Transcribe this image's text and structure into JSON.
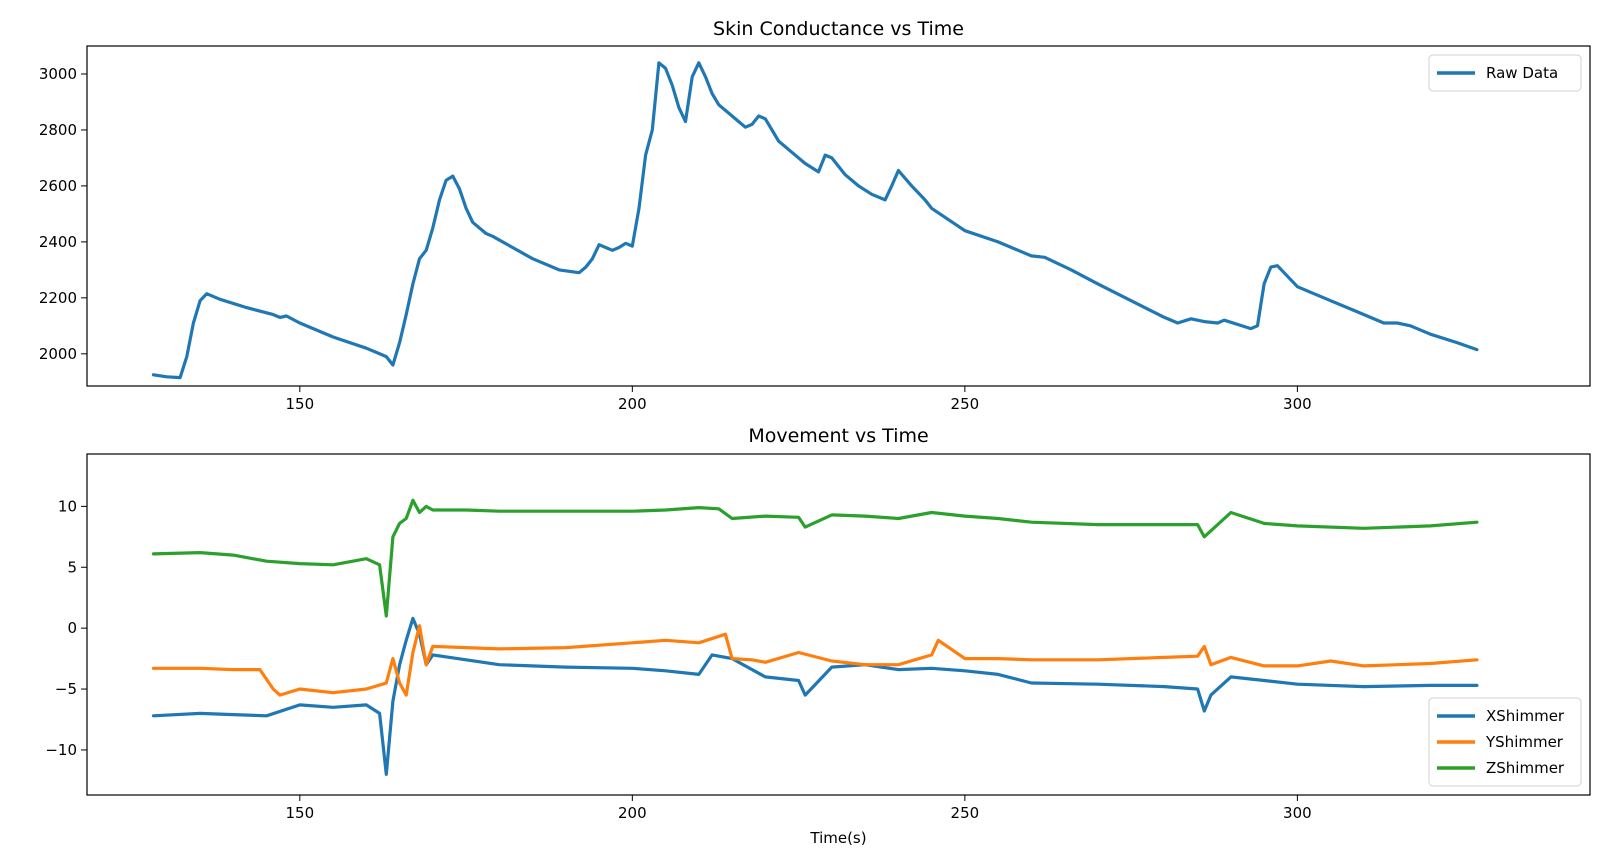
{
  "chart_data": [
    {
      "type": "line",
      "title": "Skin Conductance vs Time",
      "xlabel": "",
      "ylabel": "",
      "xlim": [
        118,
        344
      ],
      "ylim": [
        1885,
        3100
      ],
      "xticks": [
        150,
        200,
        250,
        300
      ],
      "yticks": [
        2000,
        2200,
        2400,
        2600,
        2800,
        3000
      ],
      "grid": false,
      "legend_position": "top-right",
      "series": [
        {
          "name": "Raw Data",
          "color": "#1f77b4",
          "x": [
            128,
            130,
            132,
            133,
            134,
            135,
            136,
            138,
            142,
            146,
            147,
            148,
            150,
            155,
            160,
            163,
            164,
            165,
            166,
            167,
            168,
            169,
            170,
            171,
            172,
            173,
            174,
            175,
            176,
            178,
            179,
            182,
            185,
            189,
            192,
            193,
            194,
            195,
            196,
            197,
            198,
            199,
            200,
            201,
            202,
            203,
            204,
            205,
            206,
            207,
            208,
            209,
            210,
            211,
            212,
            213,
            215,
            216,
            217,
            218,
            219,
            220,
            221,
            222,
            224,
            226,
            228,
            229,
            230,
            232,
            234,
            236,
            238,
            239,
            240,
            242,
            244,
            245,
            250,
            255,
            258,
            260,
            262,
            266,
            270,
            275,
            280,
            282,
            284,
            286,
            288,
            289,
            291,
            293,
            294,
            295,
            296,
            297,
            298,
            300,
            302,
            305,
            308,
            311,
            313,
            315,
            317,
            320,
            324,
            327
          ],
          "y": [
            1925,
            1918,
            1915,
            1990,
            2110,
            2190,
            2215,
            2195,
            2165,
            2140,
            2130,
            2135,
            2110,
            2060,
            2020,
            1990,
            1960,
            2040,
            2140,
            2250,
            2340,
            2370,
            2450,
            2550,
            2620,
            2635,
            2590,
            2520,
            2470,
            2430,
            2420,
            2380,
            2340,
            2300,
            2290,
            2310,
            2340,
            2390,
            2380,
            2370,
            2380,
            2395,
            2385,
            2520,
            2710,
            2800,
            3040,
            3020,
            2960,
            2880,
            2830,
            2990,
            3040,
            2990,
            2930,
            2890,
            2850,
            2830,
            2810,
            2820,
            2850,
            2840,
            2800,
            2760,
            2720,
            2680,
            2650,
            2710,
            2700,
            2640,
            2600,
            2570,
            2550,
            2600,
            2655,
            2600,
            2550,
            2520,
            2440,
            2400,
            2370,
            2350,
            2345,
            2300,
            2250,
            2190,
            2130,
            2110,
            2125,
            2115,
            2110,
            2120,
            2105,
            2090,
            2100,
            2250,
            2310,
            2315,
            2290,
            2240,
            2220,
            2190,
            2160,
            2130,
            2110,
            2110,
            2100,
            2070,
            2040,
            2015
          ]
        }
      ]
    },
    {
      "type": "line",
      "title": "Movement vs Time",
      "xlabel": "Time(s)",
      "ylabel": "",
      "xlim": [
        118,
        344
      ],
      "ylim": [
        -13.7,
        14.3
      ],
      "xticks": [
        150,
        200,
        250,
        300
      ],
      "yticks": [
        -10,
        -5,
        0,
        5,
        10
      ],
      "grid": false,
      "legend_position": "bottom-right",
      "series": [
        {
          "name": "XShimmer",
          "color": "#1f77b4",
          "x": [
            128,
            135,
            140,
            145,
            150,
            155,
            160,
            162,
            163,
            164,
            165,
            166,
            167,
            168,
            169,
            170,
            175,
            180,
            190,
            200,
            205,
            210,
            212,
            215,
            220,
            225,
            226,
            230,
            235,
            240,
            245,
            250,
            255,
            260,
            270,
            280,
            285,
            286,
            287,
            290,
            295,
            300,
            310,
            320,
            327
          ],
          "y": [
            -7.2,
            -7.0,
            -7.1,
            -7.2,
            -6.3,
            -6.5,
            -6.3,
            -7.0,
            -12.0,
            -6.0,
            -3.0,
            -1.0,
            0.8,
            -0.5,
            -3.0,
            -2.2,
            -2.6,
            -3.0,
            -3.2,
            -3.3,
            -3.5,
            -3.8,
            -2.2,
            -2.5,
            -4.0,
            -4.3,
            -5.5,
            -3.2,
            -3.0,
            -3.4,
            -3.3,
            -3.5,
            -3.8,
            -4.5,
            -4.6,
            -4.8,
            -5.0,
            -6.8,
            -5.5,
            -4.0,
            -4.3,
            -4.6,
            -4.8,
            -4.7,
            -4.7
          ]
        },
        {
          "name": "YShimmer",
          "color": "#ff7f0e",
          "x": [
            128,
            135,
            140,
            144,
            146,
            147,
            150,
            155,
            160,
            163,
            164,
            165,
            166,
            167,
            168,
            169,
            170,
            175,
            180,
            190,
            200,
            205,
            210,
            214,
            215,
            218,
            220,
            225,
            230,
            235,
            240,
            245,
            246,
            250,
            255,
            260,
            270,
            280,
            285,
            286,
            287,
            290,
            295,
            300,
            305,
            310,
            320,
            327
          ],
          "y": [
            -3.3,
            -3.3,
            -3.4,
            -3.4,
            -5.0,
            -5.5,
            -5.0,
            -5.3,
            -5.0,
            -4.5,
            -2.5,
            -4.5,
            -5.5,
            -2.0,
            0.2,
            -3.0,
            -1.5,
            -1.6,
            -1.7,
            -1.6,
            -1.2,
            -1.0,
            -1.2,
            -0.5,
            -2.5,
            -2.6,
            -2.8,
            -2.0,
            -2.7,
            -3.0,
            -3.0,
            -2.2,
            -1.0,
            -2.5,
            -2.5,
            -2.6,
            -2.6,
            -2.4,
            -2.3,
            -1.5,
            -3.0,
            -2.4,
            -3.1,
            -3.1,
            -2.7,
            -3.1,
            -2.9,
            -2.6
          ]
        },
        {
          "name": "ZShimmer",
          "color": "#2ca02c",
          "x": [
            128,
            135,
            140,
            145,
            150,
            155,
            160,
            162,
            163,
            164,
            165,
            166,
            167,
            168,
            169,
            170,
            175,
            180,
            190,
            200,
            205,
            210,
            213,
            215,
            220,
            225,
            226,
            230,
            235,
            240,
            245,
            250,
            255,
            260,
            270,
            280,
            285,
            286,
            290,
            295,
            300,
            310,
            320,
            327
          ],
          "y": [
            6.1,
            6.2,
            6.0,
            5.5,
            5.3,
            5.2,
            5.7,
            5.2,
            1.0,
            7.5,
            8.6,
            9.0,
            10.5,
            9.5,
            10.0,
            9.7,
            9.7,
            9.6,
            9.6,
            9.6,
            9.7,
            9.9,
            9.8,
            9.0,
            9.2,
            9.1,
            8.3,
            9.3,
            9.2,
            9.0,
            9.5,
            9.2,
            9.0,
            8.7,
            8.5,
            8.5,
            8.5,
            7.5,
            9.5,
            8.6,
            8.4,
            8.2,
            8.4,
            8.7
          ]
        }
      ]
    }
  ]
}
